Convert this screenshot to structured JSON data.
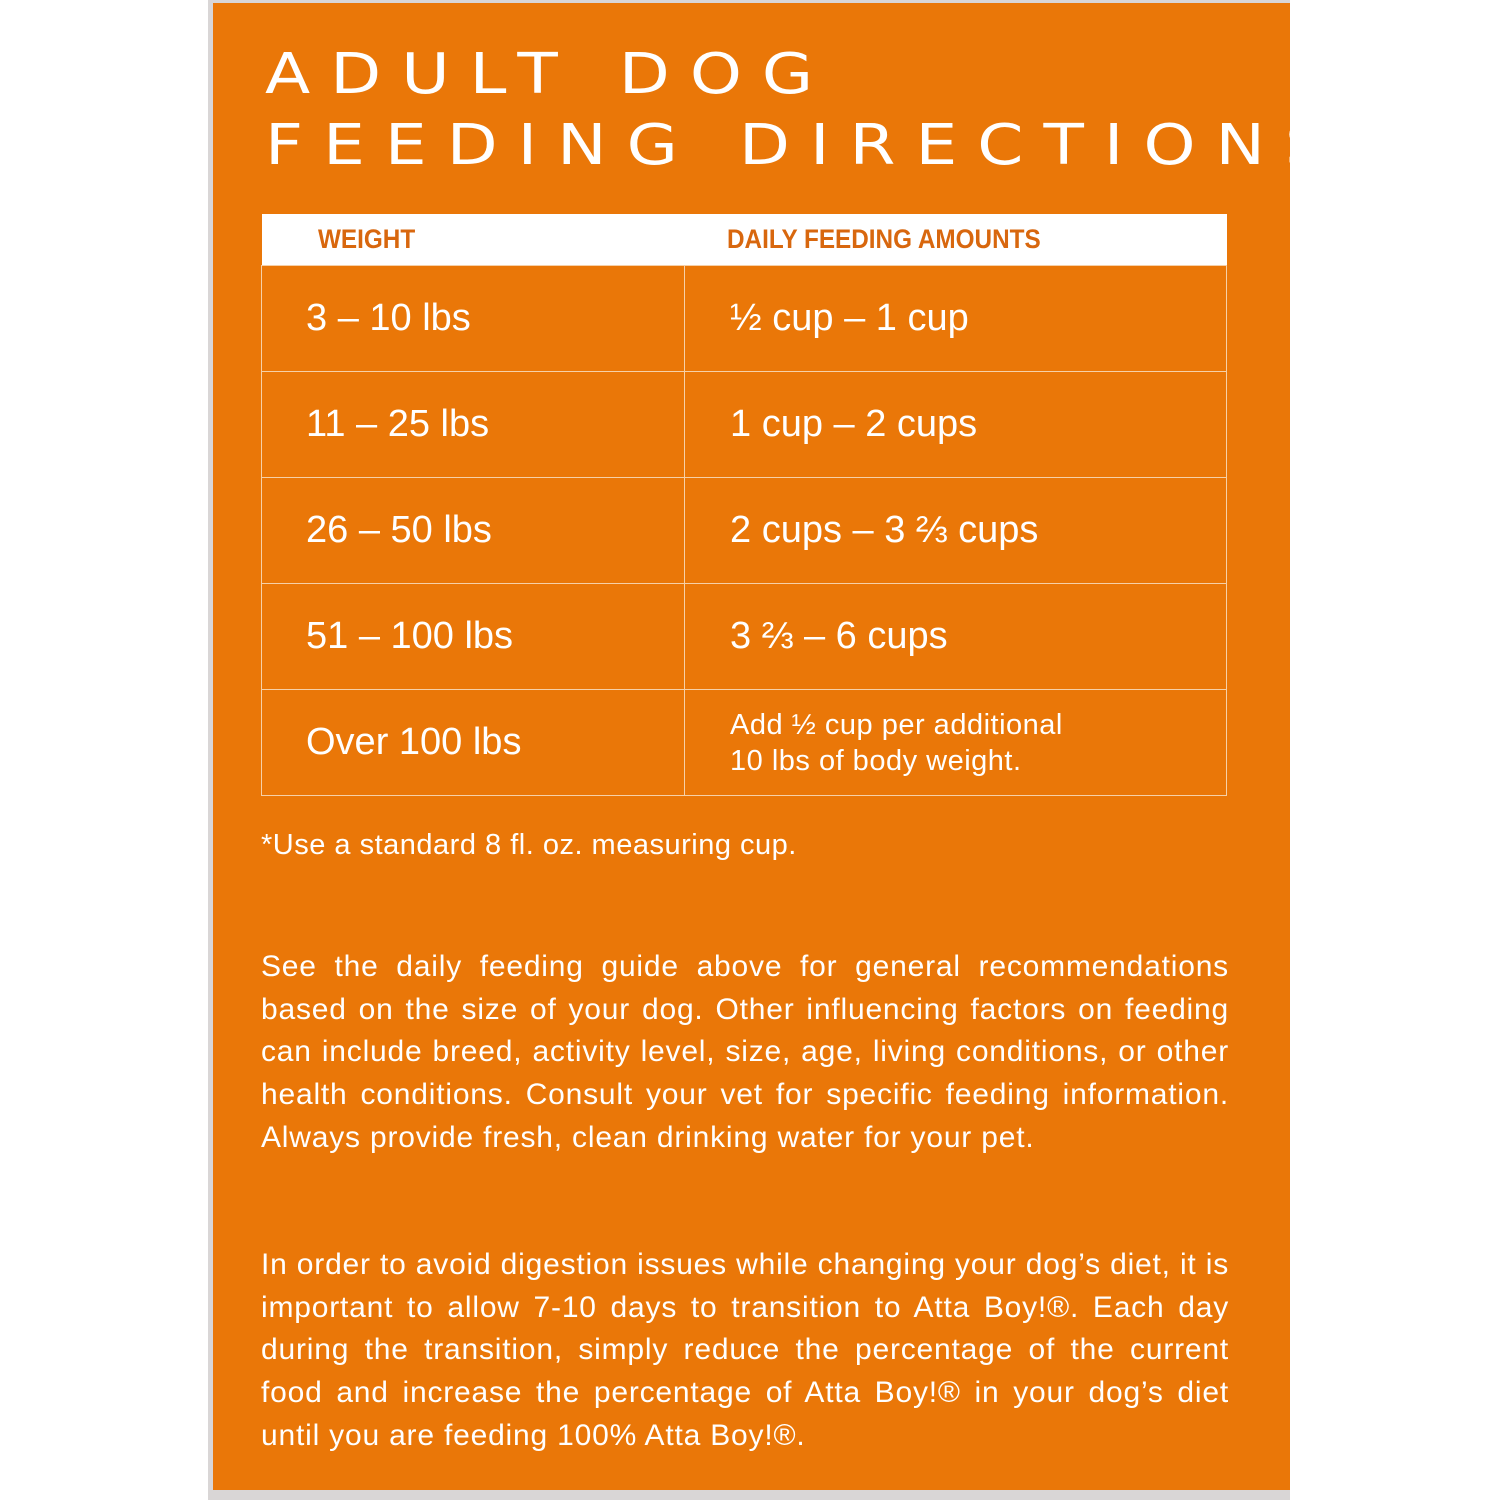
{
  "title": {
    "line1": "ADULT DOG",
    "line2": "FEEDING DIRECTIONS"
  },
  "table": {
    "headers": [
      "WEIGHT",
      "DAILY FEEDING AMOUNTS"
    ],
    "rows": [
      {
        "weight": "3 – 10 lbs",
        "amount": "½ cup – 1 cup"
      },
      {
        "weight": "11 – 25 lbs",
        "amount": "1 cup – 2 cups"
      },
      {
        "weight": "26 – 50 lbs",
        "amount": "2 cups – 3 ⅔ cups"
      },
      {
        "weight": "51 – 100 lbs",
        "amount": "3 ⅔ – 6 cups"
      },
      {
        "weight": "Over 100 lbs",
        "amount_line1": "Add ½ cup per additional",
        "amount_line2": "10 lbs of body weight."
      }
    ]
  },
  "note": "*Use a standard 8 fl. oz. measuring cup.",
  "paragraphs": [
    "See the daily feeding guide above for general recommendations based on the size of your dog. Other influencing factors on feeding can include breed, activity level, size, age, living conditions, or other health conditions. Consult your vet for specific feeding information. Always provide fresh, clean drinking water for your pet.",
    "In order to avoid digestion issues while changing your dog’s diet, it is important to allow 7-10 days to transition to Atta Boy!®. Each day during the transition, simply reduce the percentage of the current food and increase the percentage of Atta Boy!® in your dog’s diet until you are feeding 100% Atta Boy!®."
  ],
  "colors": {
    "background": "#ea7708",
    "header_text": "#d8670e",
    "text": "#ffffff"
  }
}
